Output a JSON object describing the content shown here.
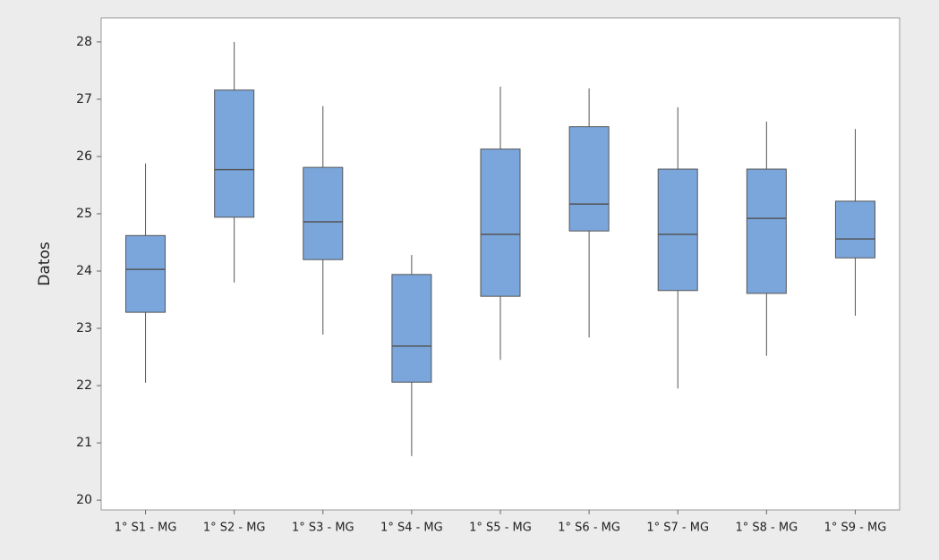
{
  "chart_data": {
    "type": "box",
    "ylabel": "Datos",
    "color": "#7aa6dc",
    "categories": [
      "1° S1 - MG",
      "1° S2 - MG",
      "1° S3 - MG",
      "1° S4 - MG",
      "1° S5 - MG",
      "1° S6 - MG",
      "1° S7 - MG",
      "1° S8 - MG",
      "1° S9 - MG"
    ],
    "min": [
      22.05,
      23.8,
      22.89,
      20.77,
      22.45,
      22.84,
      21.95,
      22.52,
      23.22
    ],
    "q1": [
      23.28,
      24.94,
      24.2,
      22.06,
      23.56,
      24.7,
      23.66,
      23.61,
      24.23
    ],
    "median": [
      24.03,
      25.77,
      24.86,
      22.69,
      24.64,
      25.17,
      24.64,
      24.92,
      24.56
    ],
    "q3": [
      24.62,
      27.16,
      25.81,
      23.94,
      26.13,
      26.52,
      25.78,
      25.78,
      25.22
    ],
    "max": [
      25.88,
      28.0,
      26.88,
      24.28,
      27.22,
      27.19,
      26.86,
      26.61,
      26.48
    ],
    "ylim": [
      19.83,
      28.42
    ],
    "yticks": [
      20,
      21,
      22,
      23,
      24,
      25,
      26,
      27,
      28
    ]
  }
}
